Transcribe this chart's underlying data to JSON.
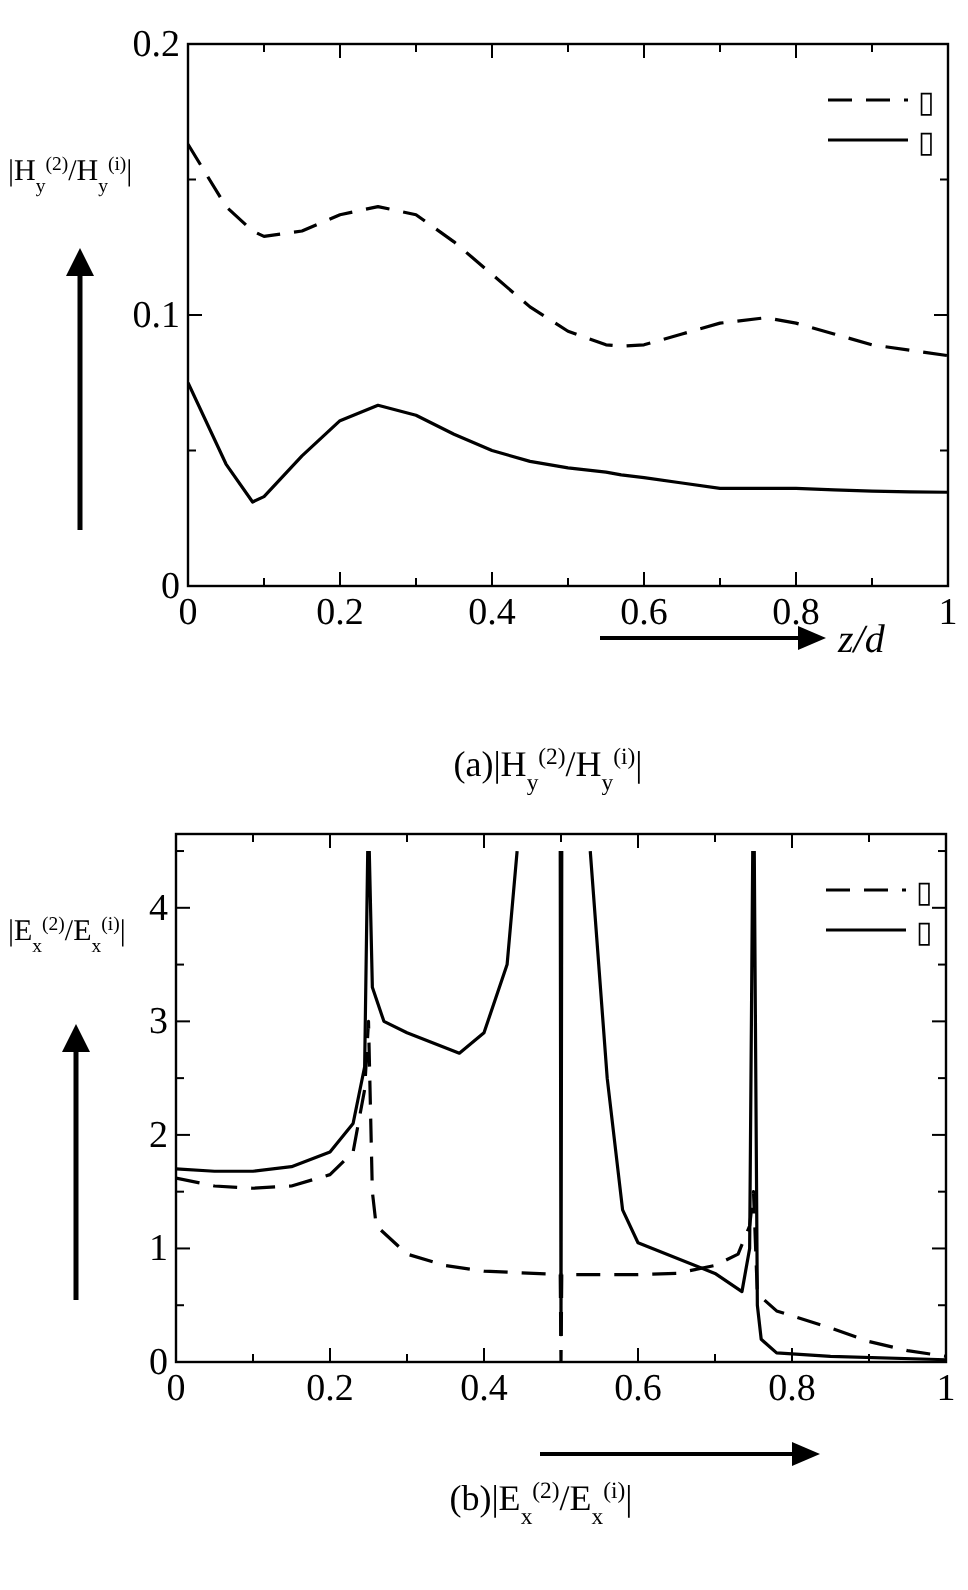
{
  "chart_data": [
    {
      "type": "line",
      "title": "(a)|H$_{y}$$^{(2)}$/H$_{y}$$^{(i)}$|",
      "xlabel": "z/d",
      "ylabel": "|H$_{y}$$^{(2)}$/H$_{y}$$^{(i)}$|",
      "legend": "top right",
      "xlim": [
        0,
        1
      ],
      "ylim": [
        0,
        0.2
      ],
      "xticks": [
        0,
        {
          "value": 0.1,
          "label": null
        },
        0.2,
        {
          "value": 0.3,
          "label": null
        },
        0.4,
        {
          "value": 0.5,
          "label": null
        },
        0.6,
        {
          "value": 0.7,
          "label": null
        },
        0.8,
        {
          "value": 0.9,
          "label": null
        },
        1
      ],
      "yticks": [
        0,
        {
          "value": 0.05,
          "label": null
        },
        0.1,
        {
          "value": 0.15,
          "label": null
        },
        0.2
      ],
      "x": [
        0,
        0.05,
        0.085,
        0.1,
        0.15,
        0.2,
        0.25,
        0.3,
        0.35,
        0.4,
        0.45,
        0.5,
        0.55,
        0.57,
        0.6,
        0.65,
        0.7,
        0.76,
        0.8,
        0.85,
        0.9,
        0.95,
        1
      ],
      "series": [
        {
          "name": "▯",
          "color": "#000000",
          "line_style": "dashed",
          "values": [
            0.163,
            0.14,
            0.131,
            0.129,
            0.131,
            0.137,
            0.14,
            0.137,
            0.127,
            0.115,
            0.103,
            0.094,
            0.089,
            0.0885,
            0.089,
            0.093,
            0.097,
            0.099,
            0.097,
            0.093,
            0.089,
            0.087,
            0.085
          ]
        },
        {
          "name": "▯",
          "color": "#000000",
          "line_style": "solid",
          "values": [
            0.075,
            0.045,
            0.031,
            0.033,
            0.048,
            0.061,
            0.0667,
            0.063,
            0.056,
            0.05,
            0.046,
            0.0436,
            0.042,
            0.041,
            0.04,
            0.038,
            0.036,
            0.036,
            0.036,
            0.0355,
            0.035,
            0.0347,
            0.0346
          ]
        }
      ]
    },
    {
      "type": "line",
      "title": "(b)|E$_{x}$$^{(2)}$/E$_{x}$$^{(i)}$|",
      "ylabel": "|E$_{x}$$^{(2)}$/E$_{x}$$^{(i)}$|",
      "legend": "top right",
      "xlim": [
        0,
        1
      ],
      "ylim": [
        0,
        4.65
      ],
      "xticks": [
        0,
        {
          "value": 0.1,
          "label": null
        },
        0.2,
        {
          "value": 0.3,
          "label": null
        },
        0.4,
        {
          "value": 0.5,
          "label": null
        },
        0.6,
        {
          "value": 0.7,
          "label": null
        },
        0.8,
        {
          "value": 0.9,
          "label": null
        },
        1
      ],
      "yticks": [
        0,
        {
          "value": 0.5,
          "label": null
        },
        1,
        {
          "value": 1.5,
          "label": null
        },
        2,
        {
          "value": 2.5,
          "label": null
        },
        3,
        {
          "value": 3.5,
          "label": null
        },
        4,
        {
          "value": 4.5,
          "label": null
        }
      ],
      "series": [
        {
          "name": "▯",
          "color": "#000000",
          "line_style": "dashed",
          "x": [
            0,
            0.05,
            0.1,
            0.15,
            0.2,
            0.23,
            0.245,
            0.25,
            0.255,
            0.26,
            0.3,
            0.35,
            0.4,
            0.499,
            0.5,
            0.501,
            0.6,
            0.65,
            0.7,
            0.73,
            0.745,
            0.75,
            0.755,
            0.78,
            0.85,
            0.9,
            0.95,
            1
          ],
          "values": [
            1.62,
            1.55,
            1.53,
            1.55,
            1.65,
            1.85,
            2.4,
            3.0,
            1.5,
            1.2,
            0.95,
            0.85,
            0.8,
            0.77,
            0,
            0.77,
            0.77,
            0.78,
            0.85,
            0.95,
            1.2,
            1.5,
            0.6,
            0.45,
            0.3,
            0.18,
            0.1,
            0.05
          ]
        },
        {
          "name": "▯",
          "color": "#000000",
          "line_style": "solid",
          "x": [
            0,
            0.05,
            0.1,
            0.15,
            0.2,
            0.23,
            0.245,
            0.249,
            0.25,
            0.251,
            0.255,
            0.27,
            0.3,
            0.368,
            0.4,
            0.43,
            0.443,
            0.47,
            0.499,
            0.5,
            0.501,
            0.52,
            0.538,
            0.56,
            0.58,
            0.6,
            0.7,
            0.735,
            0.745,
            0.749,
            0.75,
            0.751,
            0.755,
            0.76,
            0.78,
            0.85,
            1
          ],
          "values": [
            1.7,
            1.68,
            1.68,
            1.72,
            1.85,
            2.1,
            2.6,
            4.5,
            null,
            4.5,
            3.3,
            3.0,
            2.9,
            2.72,
            2.9,
            3.5,
            4.5,
            null,
            4.5,
            0.24,
            4.5,
            null,
            4.5,
            2.5,
            1.34,
            1.05,
            0.78,
            0.62,
            1.0,
            4.5,
            null,
            4.5,
            0.5,
            0.2,
            0.08,
            0.05,
            0.02
          ]
        }
      ]
    }
  ]
}
